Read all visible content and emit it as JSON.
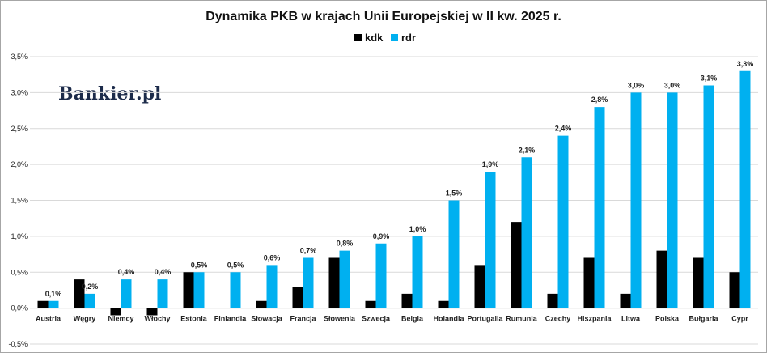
{
  "chart_data": {
    "type": "bar",
    "title": "Dynamika PKB w krajach Unii Europejskiej w II kw. 2025 r.",
    "brand": "Bankier.pl",
    "legend_position": "top-center",
    "grid": true,
    "ylim": [
      -0.5,
      3.5
    ],
    "yticks": [
      "-0,5%",
      "0,0%",
      "0,5%",
      "1,0%",
      "1,5%",
      "2,0%",
      "2,5%",
      "3,0%",
      "3,5%"
    ],
    "categories": [
      "Austria",
      "Węgry",
      "Niemcy",
      "Włochy",
      "Estonia",
      "Finlandia",
      "Słowacja",
      "Francja",
      "Słowenia",
      "Szwecja",
      "Belgia",
      "Holandia",
      "Portugalia",
      "Rumunia",
      "Czechy",
      "Hiszpania",
      "Litwa",
      "Polska",
      "Bułgaria",
      "Cypr"
    ],
    "series": [
      {
        "name": "kdk",
        "color": "#000000",
        "values": [
          0.1,
          0.4,
          -0.1,
          -0.1,
          0.5,
          0.0,
          0.1,
          0.3,
          0.7,
          0.1,
          0.2,
          0.1,
          0.6,
          1.2,
          0.2,
          0.7,
          0.2,
          0.8,
          0.7,
          0.5
        ]
      },
      {
        "name": "rdr",
        "color": "#00b0f0",
        "values": [
          0.1,
          0.2,
          0.4,
          0.4,
          0.5,
          0.5,
          0.6,
          0.7,
          0.8,
          0.9,
          1.0,
          1.5,
          1.9,
          2.1,
          2.4,
          2.8,
          3.0,
          3.0,
          3.1,
          3.3
        ]
      }
    ],
    "data_labels": [
      "0,1%",
      "0,2%",
      "0,4%",
      "0,4%",
      "0,5%",
      "0,5%",
      "0,6%",
      "0,7%",
      "0,8%",
      "0,9%",
      "1,0%",
      "1,5%",
      "1,9%",
      "2,1%",
      "2,4%",
      "2,8%",
      "3,0%",
      "3,0%",
      "3,1%",
      "3,3%"
    ]
  }
}
